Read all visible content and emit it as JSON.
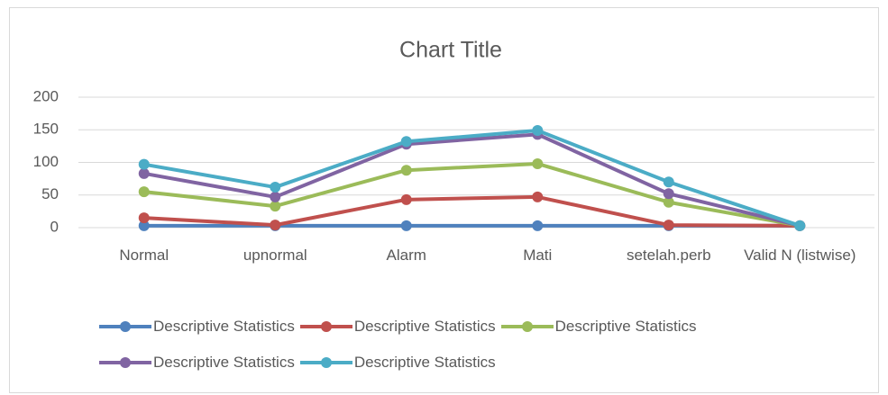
{
  "chart_data": {
    "type": "line",
    "title": "Chart Title",
    "categories": [
      "Normal",
      "upnormal",
      "Alarm",
      "Mati",
      "setelah.perb",
      "Valid N (listwise)"
    ],
    "series": [
      {
        "name": "Descriptive Statistics",
        "color": "#4f81bd",
        "values": [
          3,
          3,
          3,
          3,
          3,
          3
        ]
      },
      {
        "name": "Descriptive Statistics",
        "color": "#c0504d",
        "values": [
          15,
          4,
          43,
          47,
          4,
          3
        ]
      },
      {
        "name": "Descriptive Statistics",
        "color": "#9bbb59",
        "values": [
          55,
          33,
          88,
          98,
          39,
          3
        ]
      },
      {
        "name": "Descriptive Statistics",
        "color": "#8064a2",
        "values": [
          83,
          47,
          128,
          143,
          52,
          3
        ]
      },
      {
        "name": "Descriptive Statistics",
        "color": "#4bacc6",
        "values": [
          97,
          62,
          132,
          149,
          70,
          3
        ]
      }
    ],
    "ylim": [
      0,
      200
    ],
    "yticks": [
      0,
      50,
      100,
      150,
      200
    ],
    "grid": true,
    "legend": "bottom"
  }
}
